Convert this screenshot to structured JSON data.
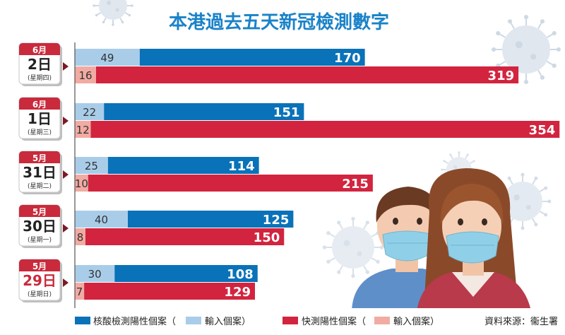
{
  "chart_data": {
    "type": "bar",
    "title": "本港過去五天新冠檢測數字",
    "source": "資料來源：衞生署",
    "categories": [
      {
        "month": "6月",
        "day": "2日",
        "weekday": "(星期四)"
      },
      {
        "month": "6月",
        "day": "1日",
        "weekday": "(星期三)"
      },
      {
        "month": "5月",
        "day": "31日",
        "weekday": "(星期二)"
      },
      {
        "month": "5月",
        "day": "30日",
        "weekday": "(星期一)"
      },
      {
        "month": "5月",
        "day": "29日",
        "weekday": "(星期日)"
      }
    ],
    "series": [
      {
        "name": "核酸檢測陽性個案",
        "imported_name": "輸入個案",
        "values": [
          170,
          151,
          114,
          125,
          108
        ],
        "imported": [
          49,
          22,
          25,
          40,
          30
        ]
      },
      {
        "name": "快測陽性個案",
        "imported_name": "輸入個案",
        "values": [
          319,
          354,
          215,
          150,
          129
        ],
        "imported": [
          16,
          12,
          10,
          8,
          7
        ]
      }
    ],
    "legend": {
      "pcr": {
        "main": "核酸檢測陽性個案（",
        "sub": "輸入個案）"
      },
      "rat": {
        "main": "快測陽性個案（",
        "sub": "輸入個案）"
      }
    },
    "xlim": [
      0,
      360
    ],
    "legend_position": "bottom",
    "colors": {
      "pcr_local": "#0a72b8",
      "pcr_import": "#a9cde9",
      "rat_local": "#d2243f",
      "rat_import": "#f1aba2",
      "title": "#1a82c8",
      "calendar": "#c92a3c"
    }
  }
}
